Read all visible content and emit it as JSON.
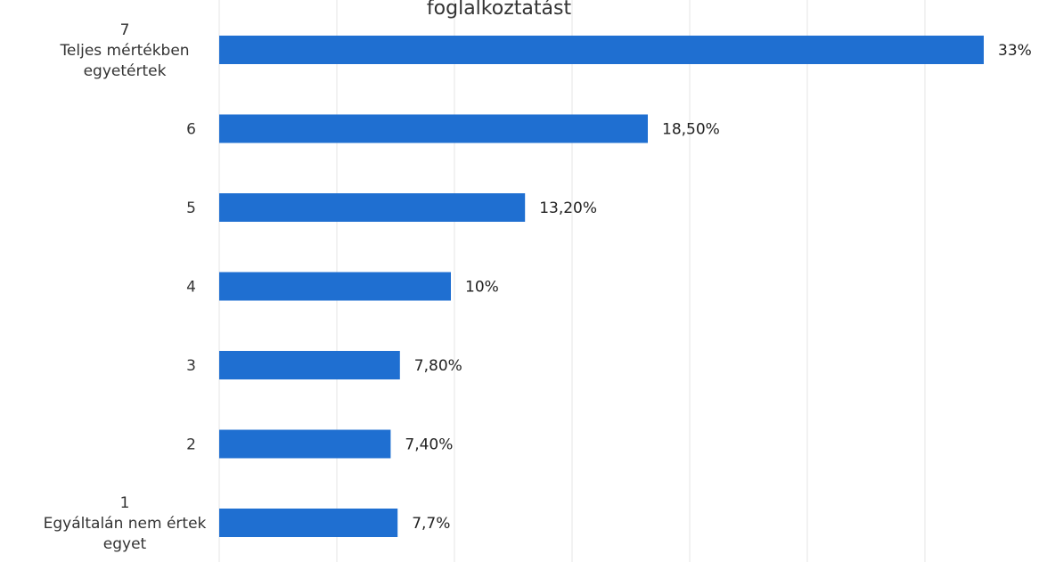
{
  "chart_data": {
    "type": "bar",
    "orientation": "horizontal",
    "title": "foglalkoztatást",
    "categories": [
      [
        "7",
        "Teljes mértékben",
        "egyetértek"
      ],
      [
        "6"
      ],
      [
        "5"
      ],
      [
        "4"
      ],
      [
        "3"
      ],
      [
        "2"
      ],
      [
        "1",
        "Egyáltalán nem értek",
        "egyet"
      ]
    ],
    "values": [
      33,
      18.5,
      13.2,
      10,
      7.8,
      7.4,
      7.7
    ],
    "value_labels": [
      "33%",
      "18,50%",
      "13,20%",
      "10%",
      "7,80%",
      "7,40%",
      "7,7%"
    ],
    "xlim": [
      0,
      35
    ],
    "grid": true,
    "colors": {
      "bar": "#1f6fd1",
      "grid": "#e6e6e6",
      "text": "#333333"
    }
  }
}
